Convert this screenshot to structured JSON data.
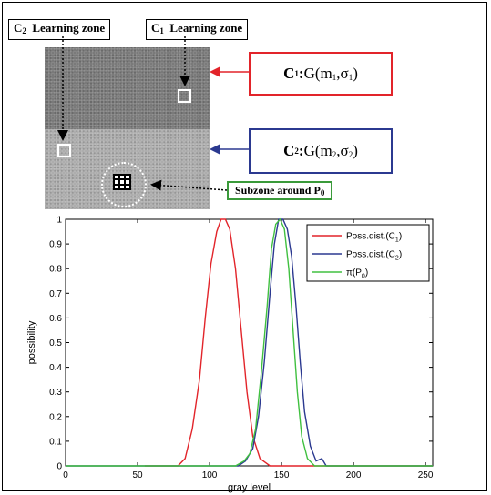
{
  "labels": {
    "c2_zone": {
      "main": "C",
      "sub": "2",
      "rest": "Learning zone"
    },
    "c1_zone": {
      "main": "C",
      "sub": "1",
      "rest": "Learning zone"
    },
    "c1_dist": {
      "pre": "C",
      "sub": "1",
      "mid": " : ",
      "g": "G",
      "args_a": "(m",
      "s1": "1",
      "args_b": ",σ",
      "s2": "1",
      "close": ")"
    },
    "c2_dist": {
      "pre": "C",
      "sub": "2",
      "mid": " : ",
      "g": "G",
      "args_a": "(m",
      "s1": "2",
      "args_b": ",σ",
      "s2": "2",
      "close": ")"
    },
    "subzone": {
      "text": "Subzone around P",
      "sub": "0"
    }
  },
  "colors": {
    "red": "#e2242a",
    "blue": "#2b3990",
    "green": "#3a9a3a"
  },
  "chart_data": {
    "type": "line",
    "xlabel": "gray level",
    "ylabel": "possibility",
    "xlim": [
      0,
      255
    ],
    "ylim": [
      0,
      1
    ],
    "xticks": [
      "0",
      "50",
      "100",
      "150",
      "200",
      "250"
    ],
    "yticks": [
      "0",
      "0.1",
      "0.2",
      "0.3",
      "0.4",
      "0.5",
      "0.6",
      "0.7",
      "0.8",
      "0.9",
      "1"
    ],
    "legend_position": "top-right",
    "series": [
      {
        "name": "Poss.dist.(C",
        "name_sub": "1",
        "name_end": ")",
        "color": "#e2242a",
        "x": [
          55,
          78,
          83,
          88,
          93,
          97,
          101,
          105,
          108,
          111,
          114,
          118,
          122,
          126,
          130,
          135,
          142,
          255
        ],
        "y": [
          0,
          0,
          0.03,
          0.15,
          0.35,
          0.6,
          0.82,
          0.95,
          1,
          1,
          0.96,
          0.8,
          0.55,
          0.3,
          0.12,
          0.03,
          0,
          0
        ]
      },
      {
        "name": "Poss.dist.(C",
        "name_sub": "2",
        "name_end": ")",
        "color": "#2b3990",
        "x": [
          0,
          120,
          125,
          130,
          134,
          138,
          142,
          145,
          148,
          151,
          154,
          157,
          160,
          163,
          166,
          170,
          174,
          178,
          181,
          255
        ],
        "y": [
          0,
          0,
          0.02,
          0.07,
          0.2,
          0.42,
          0.7,
          0.9,
          1,
          1,
          0.96,
          0.85,
          0.65,
          0.42,
          0.22,
          0.08,
          0.02,
          0.03,
          0,
          0
        ]
      },
      {
        "name": "π(P",
        "name_sub": "0",
        "name_end": ")",
        "color": "#40c040",
        "x": [
          0,
          118,
          124,
          128,
          132,
          136,
          140,
          143,
          146,
          149,
          152,
          155,
          158,
          161,
          164,
          168,
          173,
          255
        ],
        "y": [
          0,
          0,
          0.02,
          0.05,
          0.15,
          0.38,
          0.65,
          0.88,
          0.98,
          1,
          0.96,
          0.8,
          0.55,
          0.3,
          0.12,
          0.03,
          0,
          0
        ]
      }
    ]
  }
}
